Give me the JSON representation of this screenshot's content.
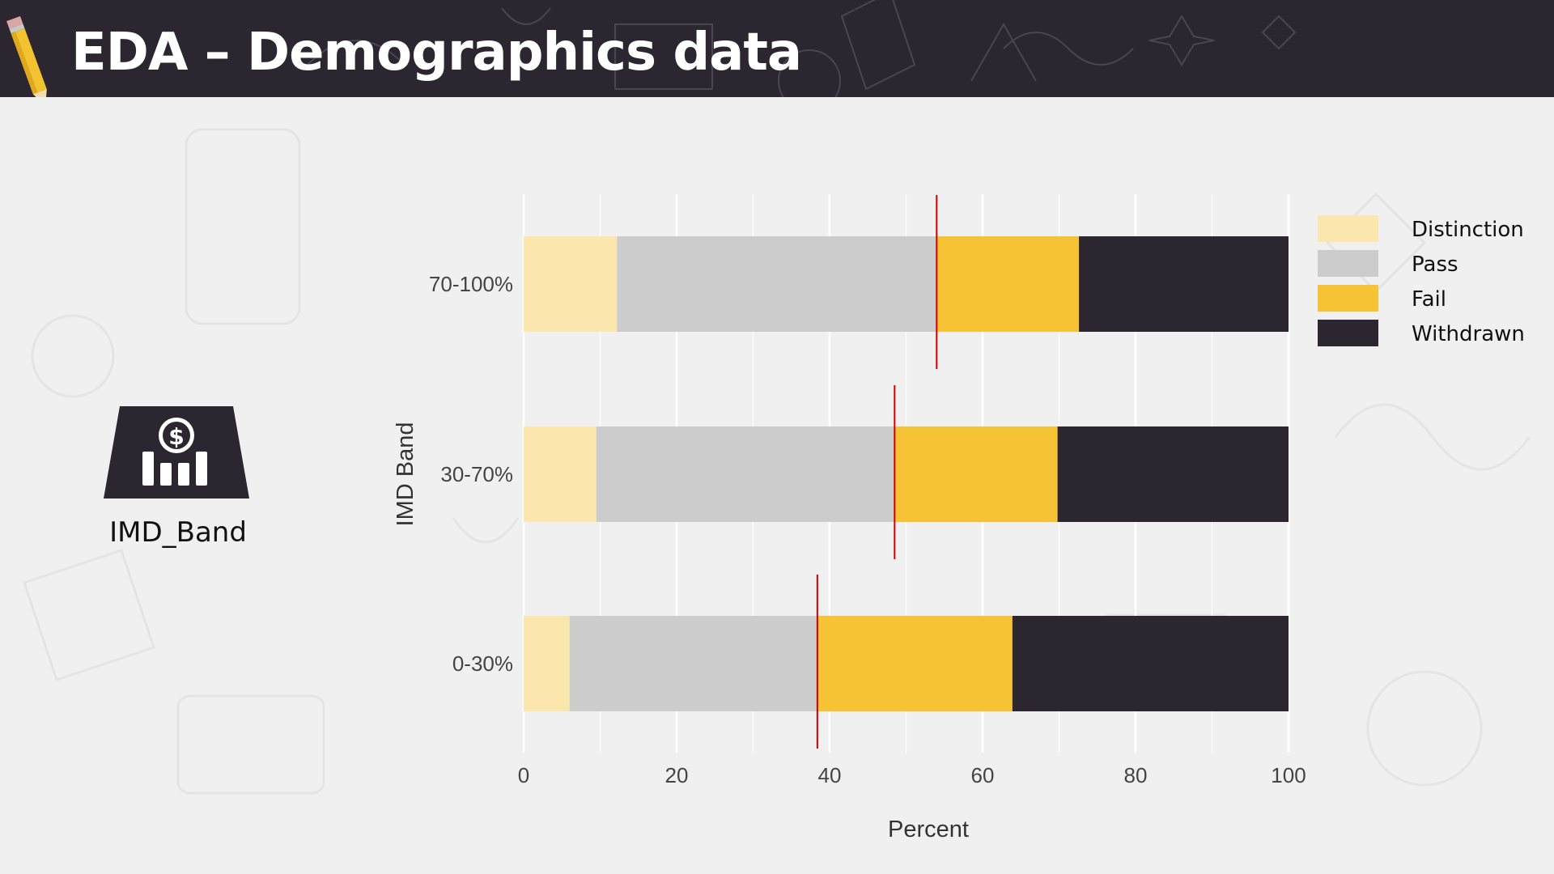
{
  "header": {
    "title": "EDA – Demographics data"
  },
  "side_panel": {
    "label": "IMD_Band",
    "icon": "income-chart-icon"
  },
  "colors": {
    "header_bg": "#2b2630",
    "Distinction": "#fbe6ae",
    "Pass": "#cccccc",
    "Fail": "#f5c333",
    "Withdrawn": "#2b2630",
    "marker": "#cc0000",
    "grid": "#ffffff"
  },
  "chart_data": {
    "type": "bar",
    "orientation": "horizontal",
    "stacked": true,
    "categories": [
      "70-100%",
      "30-70%",
      "0-30%"
    ],
    "series": [
      {
        "name": "Distinction",
        "values": [
          12.2,
          9.5,
          6.0
        ]
      },
      {
        "name": "Pass",
        "values": [
          41.8,
          39.0,
          32.4
        ]
      },
      {
        "name": "Fail",
        "values": [
          18.6,
          21.3,
          25.5
        ]
      },
      {
        "name": "Withdrawn",
        "values": [
          27.4,
          30.2,
          36.1
        ]
      }
    ],
    "marker_lines": [
      54.0,
      48.5,
      38.4
    ],
    "xlabel": "Percent",
    "ylabel": "IMD Band",
    "xlim": [
      0,
      100
    ],
    "xticks": [
      0,
      20,
      40,
      60,
      80,
      100
    ],
    "grid": true,
    "legend_position": "right"
  }
}
